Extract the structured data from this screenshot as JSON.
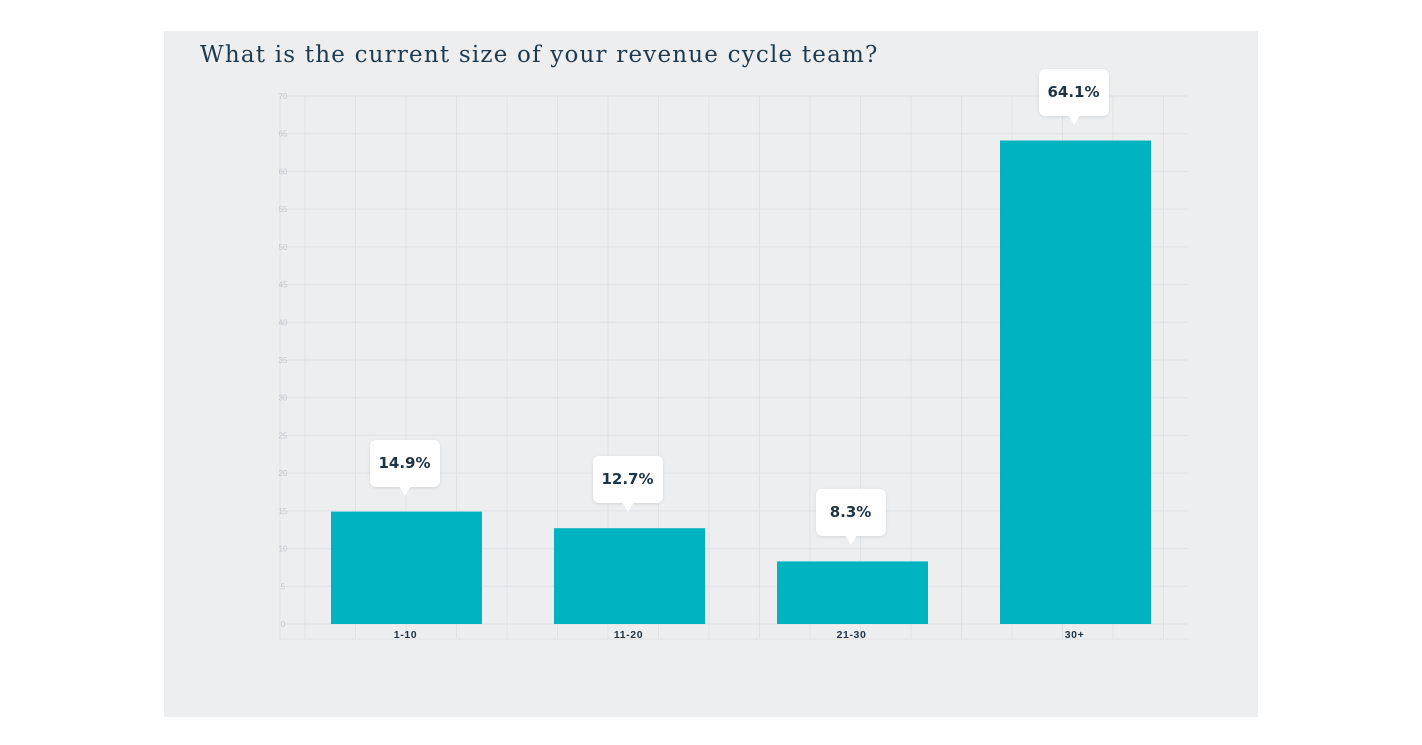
{
  "chart_data": {
    "type": "bar",
    "title": "What is the current size of your revenue cycle team?",
    "categories": [
      "1-10",
      "11-20",
      "21-30",
      "30+"
    ],
    "values": [
      14.9,
      12.7,
      8.3,
      64.1
    ],
    "data_labels": [
      "14.9%",
      "12.7%",
      "8.3%",
      "64.1%"
    ],
    "y_ticks": [
      "0",
      "5",
      "10",
      "15",
      "20",
      "25",
      "30",
      "35",
      "40",
      "45",
      "50",
      "55",
      "60",
      "65",
      "70"
    ],
    "ylim": [
      0,
      70
    ],
    "xlabel": "",
    "ylabel": "",
    "grid": true,
    "colors": {
      "bar": "#00b3c1",
      "grid": "#dfe2e5",
      "tick": "#c3c8cd",
      "category": "#1f3345"
    }
  }
}
